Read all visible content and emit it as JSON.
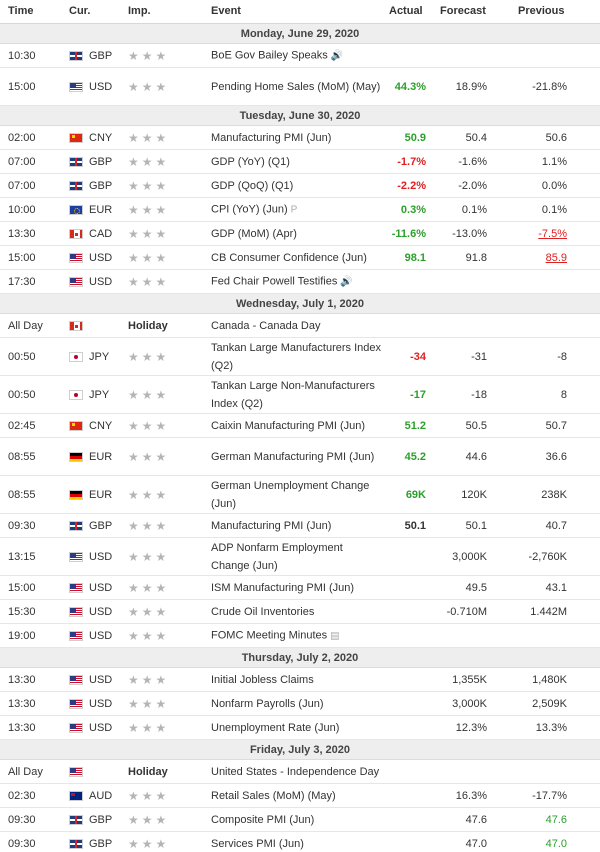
{
  "header": {
    "time": "Time",
    "cur": "Cur.",
    "imp": "Imp.",
    "event": "Event",
    "actual": "Actual",
    "forecast": "Forecast",
    "previous": "Previous"
  },
  "stars": "★★★",
  "days": [
    {
      "date": "Monday, June 29, 2020",
      "events": [
        {
          "time": "10:30",
          "flag": "gb",
          "cur": "GBP",
          "event": "BoE Gov Bailey Speaks",
          "icon": "🔊",
          "icon_name": "speaker-icon",
          "actual": "",
          "actual_class": "neutral",
          "forecast": "",
          "previous": "",
          "prev_class": "neutral",
          "tall": false
        },
        {
          "time": "15:00",
          "flag": "us",
          "cur": "USD",
          "event": "Pending Home Sales (MoM) (May)",
          "actual": "44.3%",
          "actual_class": "up",
          "forecast": "18.9%",
          "previous": "-21.8%",
          "prev_class": "neutral",
          "tall": true
        }
      ]
    },
    {
      "date": "Tuesday, June 30, 2020",
      "events": [
        {
          "time": "02:00",
          "flag": "cn",
          "cur": "CNY",
          "event": "Manufacturing PMI (Jun)",
          "actual": "50.9",
          "actual_class": "up",
          "forecast": "50.4",
          "previous": "50.6",
          "prev_class": "neutral"
        },
        {
          "time": "07:00",
          "flag": "gb",
          "cur": "GBP",
          "event": "GDP (YoY) (Q1)",
          "actual": "-1.7%",
          "actual_class": "down",
          "forecast": "-1.6%",
          "previous": "1.1%",
          "prev_class": "neutral"
        },
        {
          "time": "07:00",
          "flag": "gb",
          "cur": "GBP",
          "event": "GDP (QoQ) (Q1)",
          "actual": "-2.2%",
          "actual_class": "down",
          "forecast": "-2.0%",
          "previous": "0.0%",
          "prev_class": "neutral"
        },
        {
          "time": "10:00",
          "flag": "eu",
          "cur": "EUR",
          "event": "CPI (YoY) (Jun)",
          "icon": "P",
          "icon_name": "preliminary-icon",
          "actual": "0.3%",
          "actual_class": "up",
          "forecast": "0.1%",
          "previous": "0.1%",
          "prev_class": "neutral"
        },
        {
          "time": "13:30",
          "flag": "ca",
          "cur": "CAD",
          "event": "GDP (MoM) (Apr)",
          "actual": "-11.6%",
          "actual_class": "up",
          "forecast": "-13.0%",
          "previous": "-7.5%",
          "prev_class": "prev-down"
        },
        {
          "time": "15:00",
          "flag": "us",
          "cur": "USD",
          "event": "CB Consumer Confidence (Jun)",
          "actual": "98.1",
          "actual_class": "up",
          "forecast": "91.8",
          "previous": "85.9",
          "prev_class": "prev-down"
        },
        {
          "time": "17:30",
          "flag": "us",
          "cur": "USD",
          "event": "Fed Chair Powell Testifies",
          "icon": "🔊",
          "icon_name": "speaker-icon",
          "actual": "",
          "actual_class": "neutral",
          "forecast": "",
          "previous": "",
          "prev_class": "neutral"
        }
      ]
    },
    {
      "date": "Wednesday, July 1, 2020",
      "events": [
        {
          "time": "All Day",
          "flag": "ca",
          "cur": "",
          "holiday": "Holiday",
          "event": "Canada - Canada Day",
          "actual": "",
          "actual_class": "neutral",
          "forecast": "",
          "previous": "",
          "prev_class": "neutral"
        },
        {
          "time": "00:50",
          "flag": "jp",
          "cur": "JPY",
          "event": "Tankan Large Manufacturers Index (Q2)",
          "actual": "-34",
          "actual_class": "down",
          "forecast": "-31",
          "previous": "-8",
          "prev_class": "neutral",
          "tall": true
        },
        {
          "time": "00:50",
          "flag": "jp",
          "cur": "JPY",
          "event": "Tankan Large Non-Manufacturers Index (Q2)",
          "actual": "-17",
          "actual_class": "up",
          "forecast": "-18",
          "previous": "8",
          "prev_class": "neutral",
          "tall": true
        },
        {
          "time": "02:45",
          "flag": "cn",
          "cur": "CNY",
          "event": "Caixin Manufacturing PMI (Jun)",
          "actual": "51.2",
          "actual_class": "up",
          "forecast": "50.5",
          "previous": "50.7",
          "prev_class": "neutral"
        },
        {
          "time": "08:55",
          "flag": "de",
          "cur": "EUR",
          "event": "German Manufacturing PMI (Jun)",
          "actual": "45.2",
          "actual_class": "up",
          "forecast": "44.6",
          "previous": "36.6",
          "prev_class": "neutral",
          "tall": true
        },
        {
          "time": "08:55",
          "flag": "de",
          "cur": "EUR",
          "event": "German Unemployment Change (Jun)",
          "actual": "69K",
          "actual_class": "up",
          "forecast": "120K",
          "previous": "238K",
          "prev_class": "neutral",
          "tall": true
        },
        {
          "time": "09:30",
          "flag": "gb",
          "cur": "GBP",
          "event": "Manufacturing PMI (Jun)",
          "actual": "50.1",
          "actual_class": "neutral",
          "forecast": "50.1",
          "previous": "40.7",
          "prev_class": "neutral"
        },
        {
          "time": "13:15",
          "flag": "us",
          "cur": "USD",
          "event": "ADP Nonfarm Employment Change (Jun)",
          "actual": "",
          "actual_class": "neutral",
          "forecast": "3,000K",
          "previous": "-2,760K",
          "prev_class": "neutral",
          "tall": true
        },
        {
          "time": "15:00",
          "flag": "us",
          "cur": "USD",
          "event": "ISM Manufacturing PMI (Jun)",
          "actual": "",
          "actual_class": "neutral",
          "forecast": "49.5",
          "previous": "43.1",
          "prev_class": "neutral"
        },
        {
          "time": "15:30",
          "flag": "us",
          "cur": "USD",
          "event": "Crude Oil Inventories",
          "actual": "",
          "actual_class": "neutral",
          "forecast": "-0.710M",
          "previous": "1.442M",
          "prev_class": "neutral"
        },
        {
          "time": "19:00",
          "flag": "us",
          "cur": "USD",
          "event": "FOMC Meeting Minutes",
          "icon": "▤",
          "icon_name": "document-icon",
          "actual": "",
          "actual_class": "neutral",
          "forecast": "",
          "previous": "",
          "prev_class": "neutral"
        }
      ]
    },
    {
      "date": "Thursday, July 2, 2020",
      "events": [
        {
          "time": "13:30",
          "flag": "us",
          "cur": "USD",
          "event": "Initial Jobless Claims",
          "actual": "",
          "actual_class": "neutral",
          "forecast": "1,355K",
          "previous": "1,480K",
          "prev_class": "neutral"
        },
        {
          "time": "13:30",
          "flag": "us",
          "cur": "USD",
          "event": "Nonfarm Payrolls (Jun)",
          "actual": "",
          "actual_class": "neutral",
          "forecast": "3,000K",
          "previous": "2,509K",
          "prev_class": "neutral"
        },
        {
          "time": "13:30",
          "flag": "us",
          "cur": "USD",
          "event": "Unemployment Rate (Jun)",
          "actual": "",
          "actual_class": "neutral",
          "forecast": "12.3%",
          "previous": "13.3%",
          "prev_class": "neutral"
        }
      ]
    },
    {
      "date": "Friday, July 3, 2020",
      "events": [
        {
          "time": "All Day",
          "flag": "us",
          "cur": "",
          "holiday": "Holiday",
          "event": "United States - Independence Day",
          "actual": "",
          "actual_class": "neutral",
          "forecast": "",
          "previous": "",
          "prev_class": "neutral"
        },
        {
          "time": "02:30",
          "flag": "au",
          "cur": "AUD",
          "event": "Retail Sales (MoM) (May)",
          "actual": "",
          "actual_class": "neutral",
          "forecast": "16.3%",
          "previous": "-17.7%",
          "prev_class": "neutral"
        },
        {
          "time": "09:30",
          "flag": "gb",
          "cur": "GBP",
          "event": "Composite PMI (Jun)",
          "actual": "",
          "actual_class": "neutral",
          "forecast": "47.6",
          "previous": "47.6",
          "prev_class": "prev-up"
        },
        {
          "time": "09:30",
          "flag": "gb",
          "cur": "GBP",
          "event": "Services PMI (Jun)",
          "actual": "",
          "actual_class": "neutral",
          "forecast": "47.0",
          "previous": "47.0",
          "prev_class": "prev-up"
        }
      ]
    }
  ]
}
